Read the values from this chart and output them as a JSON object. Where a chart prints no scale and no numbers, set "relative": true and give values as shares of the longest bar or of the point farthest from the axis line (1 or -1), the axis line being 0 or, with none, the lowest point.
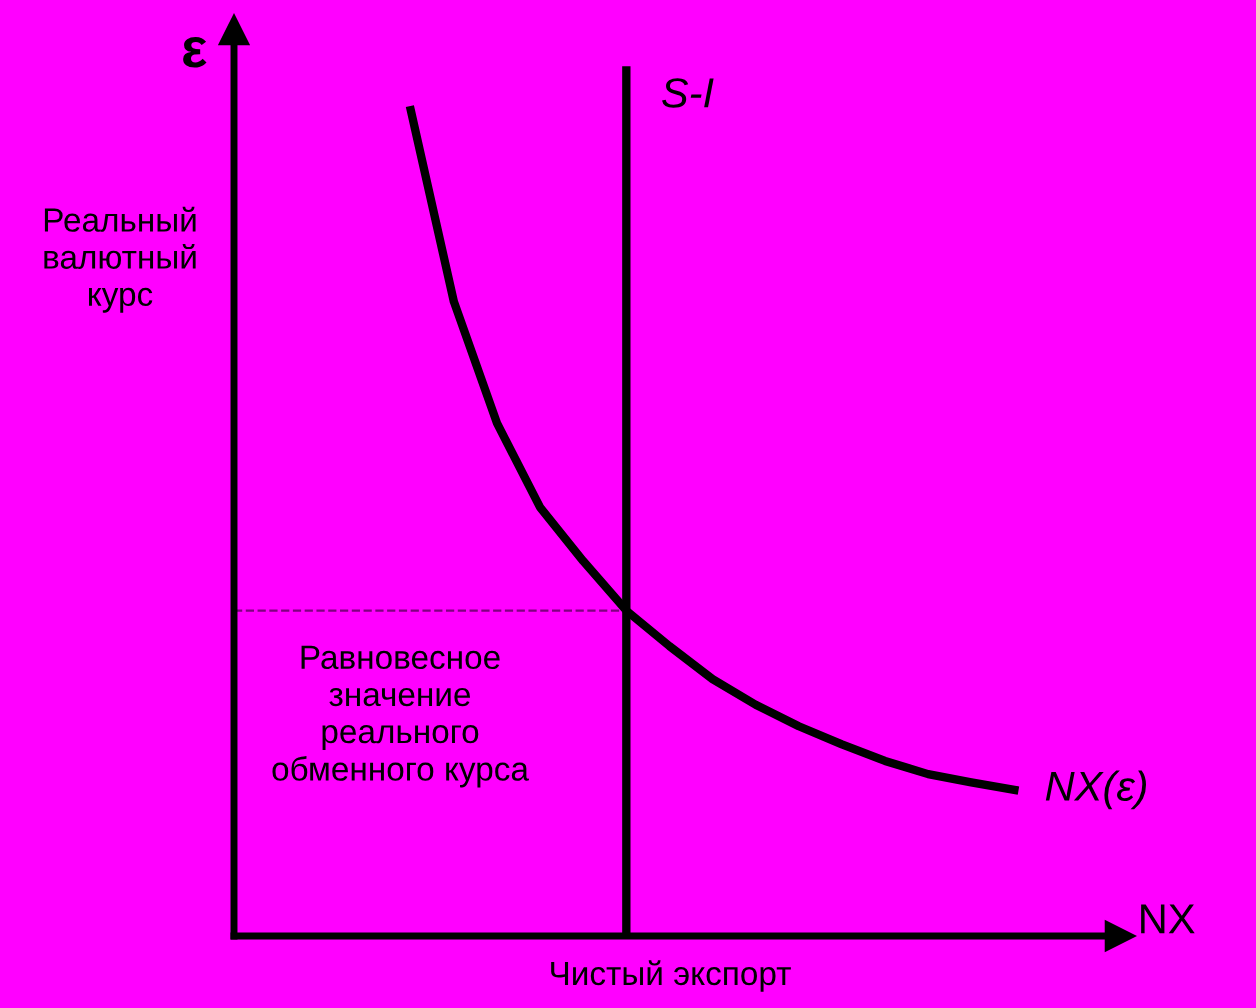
{
  "chart_data": {
    "type": "line",
    "relative": true,
    "xlabel": "NX",
    "ylabel": "ε",
    "legend": false,
    "marker": "none",
    "line_style": "solid",
    "categories": [
      null,
      null,
      null,
      null,
      null,
      null,
      null,
      null,
      null,
      null,
      null,
      null,
      null,
      null,
      null
    ],
    "series": [
      {
        "name": "NX(ε)",
        "color": "#000000",
        "values": [
          1,
          0.768,
          0.621,
          0.519,
          0.454,
          0.394,
          0.351,
          0.311,
          0.28,
          0.254,
          0.232,
          0.212,
          0.196,
          0.186,
          0.177
        ]
      }
    ],
    "ref_lines": [
      {
        "axis": "y",
        "value": 0.394,
        "color": "#800080",
        "line_style": "dashed"
      }
    ],
    "annotations": [
      "Реальный валютный курс",
      "Равновесное значение реального обменного курса",
      "Чистый экспорт",
      "S-I"
    ]
  }
}
